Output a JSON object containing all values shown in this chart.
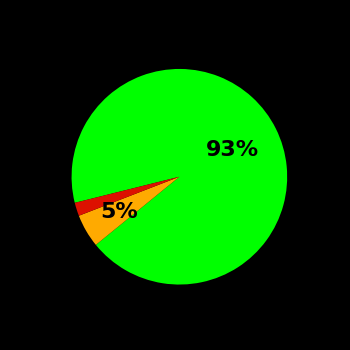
{
  "slices": [
    93,
    5,
    2
  ],
  "colors": [
    "#00ff00",
    "#ffaa00",
    "#dd1100"
  ],
  "labels": [
    "93%",
    "5%",
    ""
  ],
  "background_color": "#000000",
  "text_color": "#000000",
  "font_size": 16,
  "startangle": 194
}
